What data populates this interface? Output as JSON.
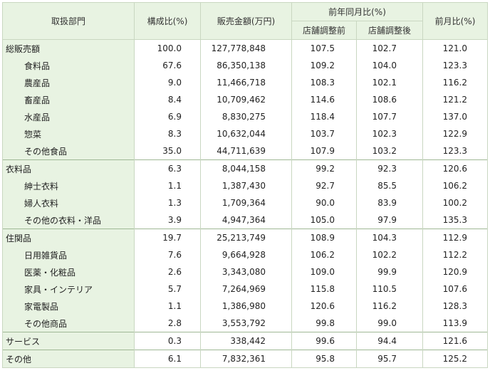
{
  "header": {
    "department": "取扱部門",
    "share": "構成比(%)",
    "amount": "販売金額(万円)",
    "yoy": "前年同月比(%)",
    "before": "店舗調整前",
    "after": "店舗調整後",
    "mom": "前月比(%)"
  },
  "rows": [
    {
      "label": "総販売額",
      "share": "100.0",
      "amount": "127,778,848",
      "before": "107.5",
      "after": "102.7",
      "mom": "121.0"
    },
    {
      "label": "食料品",
      "share": "67.6",
      "amount": "86,350,138",
      "before": "109.2",
      "after": "104.0",
      "mom": "123.3"
    },
    {
      "label": "農産品",
      "share": "9.0",
      "amount": "11,466,718",
      "before": "108.3",
      "after": "102.1",
      "mom": "116.2"
    },
    {
      "label": "畜産品",
      "share": "8.4",
      "amount": "10,709,462",
      "before": "114.6",
      "after": "108.6",
      "mom": "121.2"
    },
    {
      "label": "水産品",
      "share": "6.9",
      "amount": "8,830,275",
      "before": "118.4",
      "after": "107.7",
      "mom": "137.0"
    },
    {
      "label": "惣菜",
      "share": "8.3",
      "amount": "10,632,044",
      "before": "103.7",
      "after": "102.3",
      "mom": "122.9"
    },
    {
      "label": "その他食品",
      "share": "35.0",
      "amount": "44,711,639",
      "before": "107.9",
      "after": "103.2",
      "mom": "123.3"
    },
    {
      "label": "衣料品",
      "share": "6.3",
      "amount": "8,044,158",
      "before": "99.2",
      "after": "92.3",
      "mom": "120.6"
    },
    {
      "label": "紳士衣料",
      "share": "1.1",
      "amount": "1,387,430",
      "before": "92.7",
      "after": "85.5",
      "mom": "106.2"
    },
    {
      "label": "婦人衣料",
      "share": "1.3",
      "amount": "1,709,364",
      "before": "90.0",
      "after": "83.9",
      "mom": "100.2"
    },
    {
      "label": "その他の衣料・洋品",
      "share": "3.9",
      "amount": "4,947,364",
      "before": "105.0",
      "after": "97.9",
      "mom": "135.3"
    },
    {
      "label": "住関品",
      "share": "19.7",
      "amount": "25,213,749",
      "before": "108.9",
      "after": "104.3",
      "mom": "112.9"
    },
    {
      "label": "日用雑貨品",
      "share": "7.6",
      "amount": "9,664,928",
      "before": "106.2",
      "after": "102.2",
      "mom": "112.2"
    },
    {
      "label": "医薬・化粧品",
      "share": "2.6",
      "amount": "3,343,080",
      "before": "109.0",
      "after": "99.9",
      "mom": "120.9"
    },
    {
      "label": "家具・インテリア",
      "share": "5.7",
      "amount": "7,264,969",
      "before": "115.8",
      "after": "110.5",
      "mom": "107.6"
    },
    {
      "label": "家電製品",
      "share": "1.1",
      "amount": "1,386,980",
      "before": "120.6",
      "after": "116.2",
      "mom": "128.3"
    },
    {
      "label": "その他商品",
      "share": "2.8",
      "amount": "3,553,792",
      "before": "99.8",
      "after": "99.0",
      "mom": "113.9"
    },
    {
      "label": "サービス",
      "share": "0.3",
      "amount": "338,442",
      "before": "99.6",
      "after": "94.4",
      "mom": "121.6"
    },
    {
      "label": "その他",
      "share": "6.1",
      "amount": "7,832,361",
      "before": "95.8",
      "after": "95.7",
      "mom": "125.2"
    }
  ]
}
